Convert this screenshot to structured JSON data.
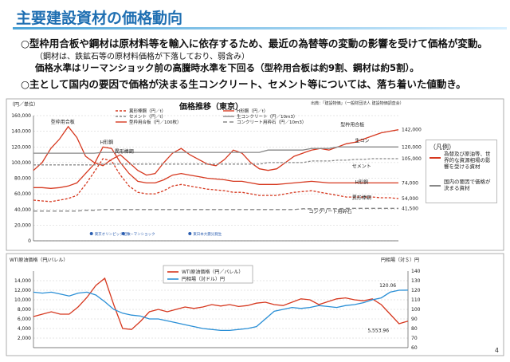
{
  "page_title": "主要建設資材の価格動向",
  "bullets": {
    "b1": "○型枠用合板や鋼材は原材料等を輸入に依存するため、最近の為替等の変動の影響を受けて価格が変動。",
    "b2": "（鋼材は、鉄鉱石等の原材料価格が下落しており、弱含み）",
    "b3": "価格水準はリーマンショック前の高騰時水準を下回る（型枠用合板は約9割、鋼材は約5割）。",
    "b4": "○主として国内の要因で価格が決まる生コンクリート、セメント等については、落ち着いた値動き。"
  },
  "right_legend": {
    "title": "（凡例）",
    "item1": "為替及び原油等、世界的な資源相場の影響を受ける資材",
    "item2": "国内の要因で価格が決まる資材",
    "color1": "#d6381f",
    "color2": "#888888"
  },
  "page_number": "4",
  "chart_data": [
    {
      "type": "line",
      "title": "価格推移（東京）",
      "source": "出典：「建設物価」（一般財団法人 建設物価調査会）",
      "ylabel": "（円／単位）",
      "ylim": [
        0,
        160000
      ],
      "yticks": [
        "0",
        "20,000",
        "40,000",
        "60,000",
        "80,000",
        "100,000",
        "120,000",
        "140,000",
        "160,000"
      ],
      "x": [
        0,
        6,
        12,
        18,
        24,
        30,
        36,
        42,
        48,
        54,
        60,
        66,
        72,
        78,
        84,
        90,
        96,
        102,
        108,
        114,
        120,
        126,
        132,
        138,
        144,
        150,
        156,
        162,
        168,
        174,
        180,
        186,
        192,
        198,
        204,
        210,
        216,
        222,
        228,
        234,
        240,
        246,
        252
      ],
      "series": [
        {
          "name": "異形棒鋼（円／t）",
          "color": "#d6381f",
          "dash": "3,2",
          "values": [
            52000,
            51000,
            50000,
            52000,
            54000,
            58000,
            72000,
            88000,
            105000,
            102000,
            84000,
            70000,
            62000,
            60000,
            60000,
            64000,
            70000,
            72000,
            70000,
            68000,
            66000,
            65000,
            64000,
            62000,
            62000,
            60000,
            58000,
            58000,
            58000,
            60000,
            62000,
            63000,
            64000,
            62000,
            60000,
            58000,
            56000,
            56000,
            56000,
            56000,
            55000,
            55000,
            54000
          ]
        },
        {
          "name": "H形鋼（円／t）",
          "color": "#d6381f",
          "dash": "",
          "values": [
            68000,
            68000,
            67000,
            68000,
            70000,
            74000,
            86000,
            98000,
            120000,
            118000,
            100000,
            86000,
            76000,
            74000,
            74000,
            78000,
            84000,
            86000,
            84000,
            82000,
            80000,
            79000,
            78000,
            76000,
            76000,
            74000,
            72000,
            72000,
            72000,
            73000,
            74000,
            75000,
            76000,
            75000,
            74000,
            74000,
            74000,
            74000,
            74000,
            74000,
            74000,
            74000,
            74000
          ]
        },
        {
          "name": "型枠用合板（円／100枚）",
          "color": "#d6381f",
          "dash": "",
          "values": [
            90000,
            100000,
            118000,
            130000,
            146000,
            132000,
            108000,
            100000,
            96000,
            104000,
            110000,
            100000,
            90000,
            84000,
            86000,
            100000,
            112000,
            118000,
            110000,
            104000,
            98000,
            96000,
            104000,
            116000,
            112000,
            100000,
            92000,
            90000,
            92000,
            100000,
            108000,
            112000,
            116000,
            118000,
            116000,
            120000,
            124000,
            126000,
            130000,
            134000,
            138000,
            140000,
            142000
          ]
        },
        {
          "name": "セメント（円／t）",
          "color": "#888888",
          "dash": "3,2",
          "values": [
            97000,
            97000,
            97000,
            97000,
            97000,
            97000,
            97000,
            97000,
            98000,
            98000,
            98000,
            98000,
            98000,
            98000,
            98000,
            98000,
            98000,
            98000,
            98000,
            98000,
            98000,
            98000,
            98000,
            98000,
            98000,
            98000,
            98000,
            100000,
            100000,
            100000,
            100000,
            100000,
            102000,
            102000,
            102000,
            103000,
            103000,
            104000,
            104000,
            105000,
            105000,
            105000,
            105000
          ]
        },
        {
          "name": "生コンクリート（円／10m3）",
          "color": "#888888",
          "dash": "",
          "values": [
            112000,
            112000,
            112000,
            112000,
            112000,
            112000,
            112000,
            112000,
            113000,
            113000,
            113000,
            113000,
            113000,
            113000,
            113000,
            113000,
            113000,
            113000,
            113000,
            113000,
            113000,
            113000,
            113000,
            113000,
            113000,
            113000,
            113000,
            116000,
            116000,
            116000,
            116000,
            116000,
            118000,
            118000,
            118000,
            120000,
            120000,
            120000,
            120000,
            120000,
            120000,
            120000,
            120000
          ]
        },
        {
          "name": "コンクリート用砕石（円／10m3）",
          "color": "#888888",
          "dash": "5,3",
          "values": [
            38000,
            38000,
            38000,
            38000,
            38000,
            38000,
            39000,
            39000,
            40000,
            40000,
            40000,
            40000,
            40000,
            40000,
            40000,
            40000,
            40000,
            40000,
            40000,
            40000,
            40000,
            40000,
            40000,
            40000,
            40000,
            40000,
            40000,
            40000,
            40000,
            40000,
            40000,
            41000,
            41000,
            41000,
            41000,
            41000,
            41500,
            41500,
            41500,
            41500,
            41500,
            41500,
            41500
          ]
        }
      ],
      "annotations": [
        {
          "text": "型枠用合板",
          "x": 12,
          "y": 150000
        },
        {
          "text": "H形鋼",
          "x": 46,
          "y": 124000
        },
        {
          "text": "異形棒鋼",
          "x": 56,
          "y": 112000
        },
        {
          "text": "生コン",
          "x": 222,
          "y": 126000
        },
        {
          "text": "セメント",
          "x": 220,
          "y": 93000
        },
        {
          "text": "H形鋼",
          "x": 222,
          "y": 73000
        },
        {
          "text": "異形棒鋼",
          "x": 220,
          "y": 53000
        },
        {
          "text": "コンクリート用砕石",
          "x": 190,
          "y": 35000
        },
        {
          "text": "型枠用合板",
          "x": 212,
          "y": 146000
        }
      ],
      "end_labels": [
        "142,000",
        "120,000",
        "105,000",
        "74,000",
        "54,000",
        "41,500"
      ],
      "event_labels": [
        "東京オリンピック招致",
        "リーマンショック",
        "東日本大震災発生"
      ]
    },
    {
      "type": "line",
      "title": "WTI原油価格（円/バレル）",
      "ylabel_left": "WTI原油価格（円/バレル）",
      "ylabel_right": "円相場（対＄）円",
      "ylim_left": [
        0,
        16000
      ],
      "ylim_right": [
        60,
        140
      ],
      "yticks_left": [
        "2,000",
        "4,000",
        "6,000",
        "8,000",
        "10,000",
        "12,000",
        "14,000"
      ],
      "yticks_right": [
        "60",
        "70",
        "80",
        "90",
        "100",
        "110",
        "120",
        "130",
        "140"
      ],
      "x": [
        0,
        6,
        12,
        18,
        24,
        30,
        36,
        42,
        48,
        54,
        60,
        66,
        72,
        78,
        84,
        90,
        96,
        102,
        108,
        114,
        120,
        126,
        132,
        138,
        144,
        150,
        156,
        162,
        168,
        174,
        180,
        186,
        192,
        198,
        204,
        210,
        216,
        222,
        228,
        234,
        240,
        246,
        252
      ],
      "series": [
        {
          "name": "WTI原油価格（円／バレル）",
          "axis": "left",
          "color": "#d6381f",
          "values": [
            6500,
            7000,
            7500,
            7000,
            7000,
            8500,
            10500,
            13000,
            14500,
            9000,
            4000,
            3800,
            5500,
            7500,
            8000,
            7500,
            8000,
            8500,
            8200,
            8500,
            9000,
            8700,
            9000,
            8600,
            8800,
            9300,
            9500,
            9000,
            8800,
            9500,
            10200,
            10000,
            9000,
            9600,
            10200,
            10400,
            10000,
            9800,
            10200,
            9000,
            7000,
            5000,
            5554
          ]
        },
        {
          "name": "円相場（対ドル）円",
          "axis": "right",
          "color": "#2a8fd6",
          "values": [
            118,
            117,
            118,
            116,
            114,
            117,
            118,
            115,
            108,
            100,
            96,
            94,
            93,
            90,
            90,
            88,
            86,
            84,
            82,
            80,
            79,
            78,
            78,
            79,
            80,
            82,
            90,
            98,
            100,
            102,
            101,
            102,
            104,
            103,
            102,
            104,
            105,
            107,
            110,
            112,
            118,
            120,
            120.06
          ]
        }
      ],
      "annotations": [
        {
          "text": "120.06",
          "x": 244,
          "y": "120.06 円"
        },
        {
          "text": "5,553.96",
          "x": 232,
          "y": "5,554 円"
        }
      ]
    }
  ]
}
